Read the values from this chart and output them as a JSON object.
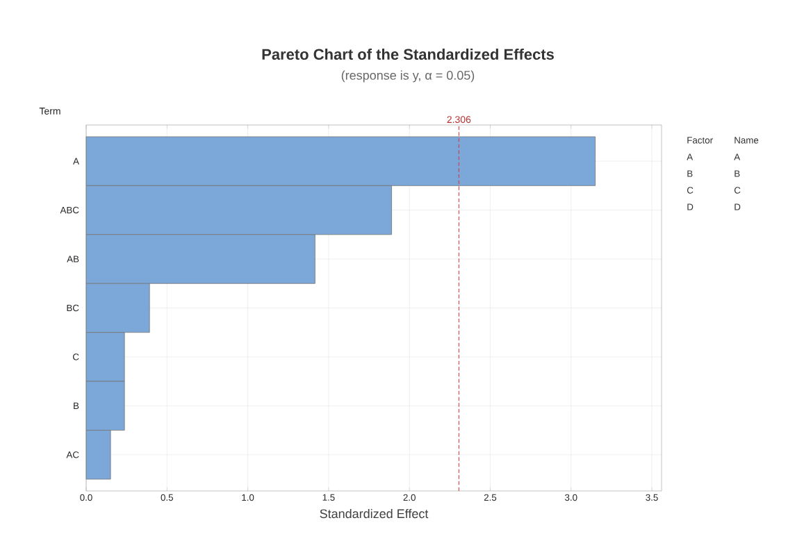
{
  "chart_data": {
    "type": "bar",
    "orientation": "horizontal",
    "title": "Pareto Chart of the Standardized Effects",
    "subtitle": "(response is y, α = 0.05)",
    "xlabel": "Standardized Effect",
    "ylabel": "Term",
    "categories": [
      "A",
      "ABC",
      "AB",
      "BC",
      "C",
      "B",
      "AC"
    ],
    "values": [
      3.15,
      1.89,
      1.416,
      0.392,
      0.237,
      0.237,
      0.151
    ],
    "color": "#7ba7d9",
    "xlim": [
      0,
      3.56
    ],
    "xticks": [
      {
        "value": 0,
        "label": "0.0"
      },
      {
        "value": 0.5,
        "label": "0.5"
      },
      {
        "value": 1,
        "label": "1.0"
      },
      {
        "value": 1.5,
        "label": "1.5"
      },
      {
        "value": 2,
        "label": "2.0"
      },
      {
        "value": 2.5,
        "label": "2.5"
      },
      {
        "value": 3,
        "label": "3.0"
      },
      {
        "value": 3.5,
        "label": "3.5"
      }
    ],
    "ref_lines": [
      {
        "axis": "x",
        "value": 2.306,
        "label": "2.306",
        "color": "#d93a3a",
        "line_style": "dashed"
      }
    ],
    "annotations": [
      "Factor",
      "Name",
      "A",
      "A",
      "B",
      "B",
      "C",
      "C",
      "D",
      "D"
    ],
    "grid": true
  }
}
